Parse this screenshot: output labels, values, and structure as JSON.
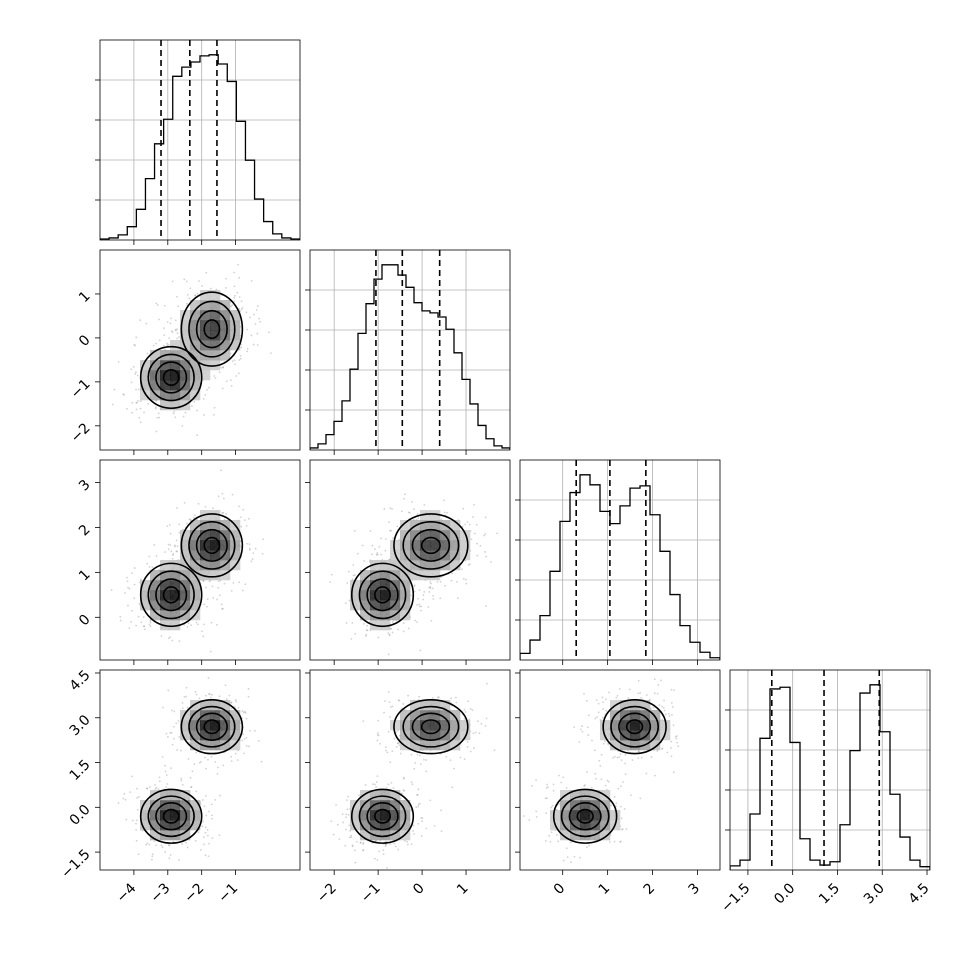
{
  "chart_data": {
    "type": "corner",
    "grid": true,
    "colors": {
      "line": "#000000",
      "grid": "#b0b0b0",
      "points": "#7f7f7f"
    },
    "params": [
      {
        "range": [
          -5.0,
          0.9
        ],
        "ticks": [
          -4,
          -3,
          -2,
          -1
        ],
        "tick_labels": [
          "−4",
          "−3",
          "−2",
          "−1"
        ],
        "quantiles": [
          -3.2,
          -2.35,
          -1.55
        ]
      },
      {
        "range": [
          -2.55,
          2.0
        ],
        "ticks": [
          -2,
          -1,
          0,
          1
        ],
        "tick_labels": [
          "−2",
          "−1",
          "0",
          "1"
        ],
        "quantiles": [
          -1.05,
          -0.45,
          0.4
        ]
      },
      {
        "range": [
          -0.95,
          3.5
        ],
        "ticks": [
          0,
          1,
          2,
          3
        ],
        "tick_labels": [
          "0",
          "1",
          "2",
          "3"
        ],
        "quantiles": [
          0.3,
          1.05,
          1.85
        ]
      },
      {
        "range": [
          -2.1,
          4.6
        ],
        "ticks": [
          -1.5,
          0.0,
          1.5,
          3.0,
          4.5
        ],
        "tick_labels": [
          "−1.5",
          "0.0",
          "1.5",
          "3.0",
          "4.5"
        ],
        "quantiles": [
          -0.7,
          1.05,
          2.9
        ]
      }
    ],
    "histograms": [
      {
        "param": 0,
        "heights": [
          1,
          2,
          5,
          13,
          30,
          60,
          94,
          118,
          160,
          169,
          174,
          180,
          181,
          172,
          155,
          116,
          78,
          40,
          18,
          6,
          2,
          1
        ]
      },
      {
        "param": 1,
        "heights": [
          2,
          6,
          15,
          28,
          48,
          79,
          114,
          143,
          167,
          181,
          181,
          171,
          159,
          144,
          136,
          134,
          130,
          118,
          95,
          69,
          45,
          24,
          11,
          4,
          2
        ]
      },
      {
        "param": 2,
        "heights": [
          6,
          18,
          40,
          80,
          125,
          151,
          167,
          158,
          134,
          123,
          139,
          155,
          157,
          131,
          98,
          59,
          31,
          16,
          7,
          2
        ]
      },
      {
        "param": 3,
        "heights": [
          5,
          12,
          68,
          160,
          220,
          222,
          155,
          38,
          12,
          6,
          10,
          55,
          145,
          215,
          225,
          168,
          92,
          40,
          12,
          4
        ]
      }
    ],
    "modes": [
      {
        "weight": 0.5,
        "mean": [
          -2.9,
          -0.9,
          0.5,
          -0.3
        ],
        "sd": [
          0.45,
          0.35,
          0.35,
          0.45
        ]
      },
      {
        "weight": 0.5,
        "mean": [
          -1.7,
          0.2,
          1.6,
          2.7
        ],
        "sd": [
          0.45,
          0.42,
          0.35,
          0.45
        ]
      }
    ]
  }
}
